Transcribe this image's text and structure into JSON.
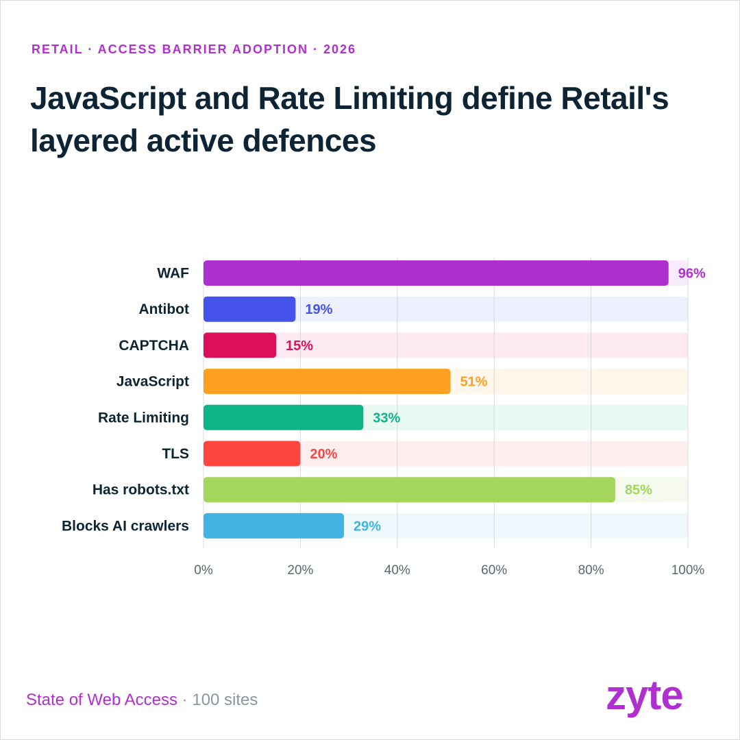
{
  "header": {
    "eyebrow": "RETAIL · ACCESS BARRIER ADOPTION · 2026",
    "title": "JavaScript and Rate Limiting define Retail's layered active defences"
  },
  "chart_data": {
    "type": "bar",
    "orientation": "horizontal",
    "categories": [
      "WAF",
      "Antibot",
      "CAPTCHA",
      "JavaScript",
      "Rate Limiting",
      "TLS",
      "Has robots.txt",
      "Blocks AI crawlers"
    ],
    "values": [
      96,
      19,
      15,
      51,
      33,
      20,
      85,
      29
    ],
    "value_labels": [
      "96%",
      "19%",
      "15%",
      "51%",
      "33%",
      "20%",
      "85%",
      "29%"
    ],
    "colors": [
      "#b02fd0",
      "#4553ea",
      "#db0f5a",
      "#fea021",
      "#0db487",
      "#fe4640",
      "#a4d55c",
      "#41b4e4"
    ],
    "track_colors": [
      "#f7eafb",
      "#eef0fd",
      "#fdeaf1",
      "#fff6ec",
      "#e8f8f3",
      "#ffeeee",
      "#f6faee",
      "#eef8fd"
    ],
    "xlim": [
      0,
      100
    ],
    "x_ticks": [
      0,
      20,
      40,
      60,
      80,
      100
    ],
    "x_tick_labels": [
      "0%",
      "20%",
      "40%",
      "60%",
      "80%",
      "100%"
    ],
    "grid": true,
    "xlabel": "",
    "ylabel": ""
  },
  "footer": {
    "source": "State of Web Access",
    "separator": " · ",
    "count": "100 sites",
    "logo": "zyte"
  }
}
